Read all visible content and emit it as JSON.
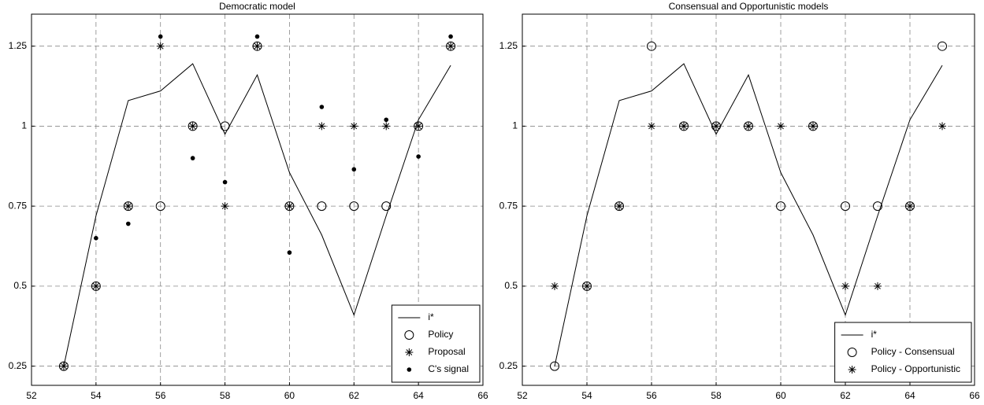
{
  "chart_data": [
    {
      "type": "line",
      "title": "Democratic model",
      "x": [
        53,
        54,
        55,
        56,
        57,
        58,
        59,
        60,
        61,
        62,
        63,
        64,
        65
      ],
      "series": [
        {
          "name": "i*",
          "color": "#000000",
          "marker": "line",
          "values": [
            0.25,
            0.72,
            1.08,
            1.11,
            1.195,
            0.975,
            1.16,
            0.855,
            0.66,
            0.41,
            0.72,
            1.02,
            1.19
          ]
        },
        {
          "name": "Policy",
          "color": "#000000",
          "marker": "circle",
          "values": [
            0.25,
            0.5,
            0.75,
            0.75,
            1,
            1,
            1.25,
            0.75,
            0.75,
            0.75,
            0.75,
            1,
            1.25
          ]
        },
        {
          "name": "Proposal",
          "color": "#000000",
          "marker": "star",
          "values": [
            0.25,
            0.5,
            0.75,
            1.25,
            1,
            0.75,
            1.25,
            0.75,
            1,
            1,
            1,
            1,
            1.25
          ]
        },
        {
          "name": "C's signal",
          "color": "#000000",
          "marker": "dot",
          "values": [
            null,
            0.65,
            0.695,
            1.28,
            0.9,
            0.825,
            1.28,
            0.605,
            1.06,
            0.865,
            1.02,
            0.905,
            1.28
          ]
        }
      ],
      "xlim": [
        52,
        66
      ],
      "ylim": [
        0.19,
        1.35
      ],
      "xticks": [
        52,
        54,
        56,
        58,
        60,
        62,
        64,
        66
      ],
      "yticks": [
        0.25,
        0.5,
        0.75,
        1,
        1.25
      ],
      "grid": true,
      "legend": "lower right"
    },
    {
      "type": "line",
      "title": "Consensual and Opportunistic models",
      "x": [
        53,
        54,
        55,
        56,
        57,
        58,
        59,
        60,
        61,
        62,
        63,
        64,
        65
      ],
      "series": [
        {
          "name": "i*",
          "color": "#000000",
          "marker": "line",
          "values": [
            0.25,
            0.72,
            1.08,
            1.11,
            1.195,
            0.975,
            1.16,
            0.855,
            0.66,
            0.41,
            0.72,
            1.02,
            1.19
          ]
        },
        {
          "name": "Policy - Consensual",
          "color": "#000000",
          "marker": "circle",
          "values": [
            0.25,
            0.5,
            0.75,
            1.25,
            1,
            1,
            1,
            0.75,
            1,
            0.75,
            0.75,
            0.75,
            1.25
          ]
        },
        {
          "name": "Policy - Opportunistic",
          "color": "#000000",
          "marker": "star",
          "values": [
            0.5,
            0.5,
            0.75,
            1,
            1,
            1,
            1,
            1,
            1,
            0.5,
            0.5,
            0.75,
            1
          ]
        }
      ],
      "xlim": [
        52,
        66
      ],
      "ylim": [
        0.19,
        1.35
      ],
      "xticks": [
        52,
        54,
        56,
        58,
        60,
        62,
        64,
        66
      ],
      "yticks": [
        0.25,
        0.5,
        0.75,
        1,
        1.25
      ],
      "grid": true,
      "legend": "lower right"
    }
  ]
}
